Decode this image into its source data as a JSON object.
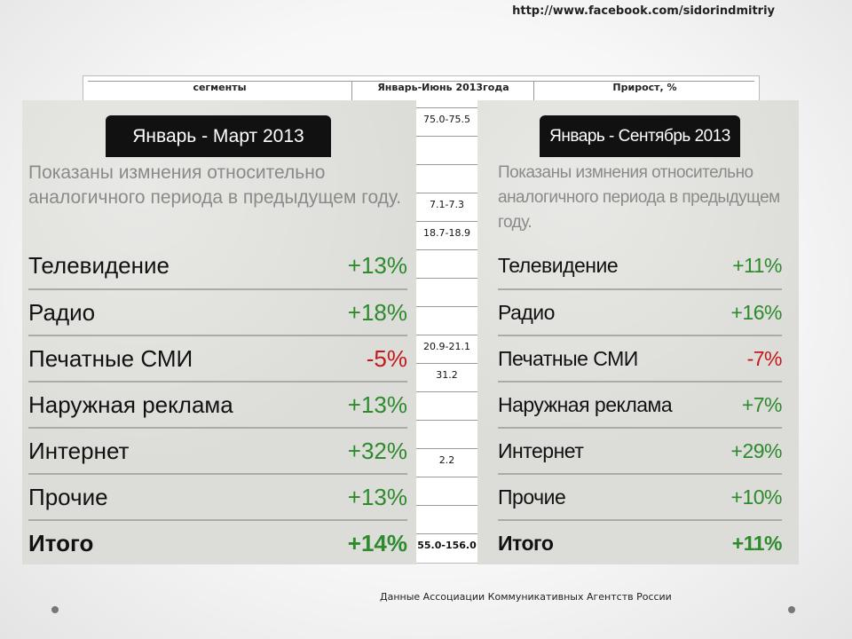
{
  "header": {
    "url": "http://www.facebook.com/sidorindmitriy"
  },
  "background_table": {
    "headers": [
      "сегменты",
      "Январь-Июнь 2013года",
      "Прирост, %"
    ],
    "column_values": [
      "75.0-75.5",
      "",
      "",
      "7.1-7.3",
      "18.7-18.9",
      "",
      "",
      "",
      "20.9-21.1",
      "31.2",
      "",
      "",
      "2.2",
      "",
      "",
      "55.0-156.0"
    ]
  },
  "panels": [
    {
      "period": "Январь - Март 2013",
      "description": "Показаны измнения относительно аналогичного периода в предыдущем году.",
      "rows": [
        {
          "name": "Телевидение",
          "value": "+13%",
          "sign": "pos"
        },
        {
          "name": "Радио",
          "value": "+18%",
          "sign": "pos"
        },
        {
          "name": "Печатные СМИ",
          "value": "-5%",
          "sign": "neg"
        },
        {
          "name": "Наружная реклама",
          "value": "+13%",
          "sign": "pos"
        },
        {
          "name": "Интернет",
          "value": "+32%",
          "sign": "pos"
        },
        {
          "name": "Прочие",
          "value": "+13%",
          "sign": "pos"
        },
        {
          "name": "Итого",
          "value": "+14%",
          "sign": "pos"
        }
      ]
    },
    {
      "period": "Январь - Сентябрь 2013",
      "description": "Показаны измнения относительно аналогичного периода в предыдущем году.",
      "rows": [
        {
          "name": "Телевидение",
          "value": "+11%",
          "sign": "pos"
        },
        {
          "name": "Радио",
          "value": "+16%",
          "sign": "pos"
        },
        {
          "name": "Печатные СМИ",
          "value": "-7%",
          "sign": "neg"
        },
        {
          "name": "Наружная реклама",
          "value": "+7%",
          "sign": "pos"
        },
        {
          "name": "Интернет",
          "value": "+29%",
          "sign": "pos"
        },
        {
          "name": "Прочие",
          "value": "+10%",
          "sign": "pos"
        },
        {
          "name": "Итого",
          "value": "+11%",
          "sign": "pos"
        }
      ]
    }
  ],
  "footer": {
    "source": "Данные Ассоциации Коммуникативных Агентств России"
  },
  "colors": {
    "positive": "#2d8a2d",
    "negative": "#c21a1a"
  }
}
